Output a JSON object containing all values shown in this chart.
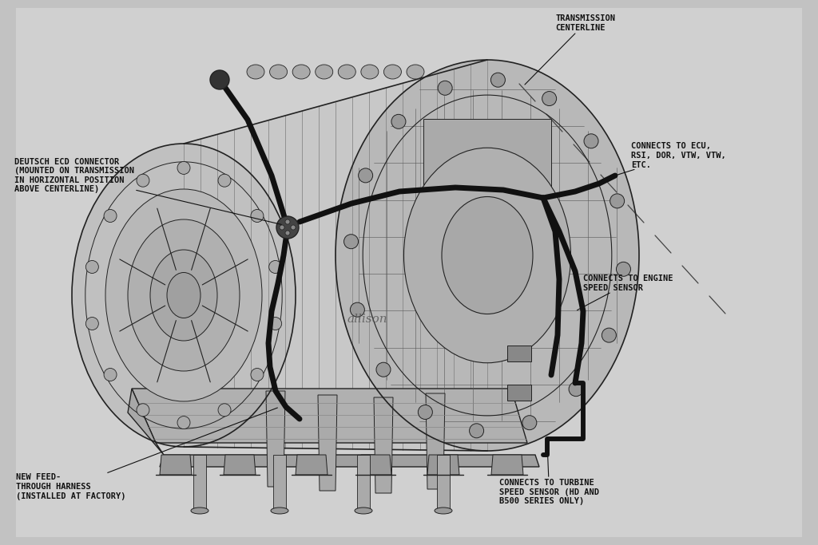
{
  "bg_gradient_top": "#b8b8b8",
  "bg_gradient_mid": "#d0d0d0",
  "bg_gradient_bot": "#c8c8c8",
  "paper_color": "#dcdcdc",
  "body_color": "#222222",
  "wire_color": "#111111",
  "wire_lw": 5.0,
  "body_lw": 1.0,
  "font_family": "monospace",
  "font_size": 7.5,
  "font_color": "#111111",
  "labels": {
    "transmission_centerline": "TRANSMISSION\nCENTERLINE",
    "deutsch_connector": "DEUTSCH ECD CONNECTOR\n(MOUNTED ON TRANSMISSION\nIN HORIZONTAL POSITION\nABOVE CENTERLINE)",
    "connects_ecu": "CONNECTS TO ECU,\nRSI, DOR, VTW, VTW,\nETC.",
    "connects_engine": "CONNECTS TO ENGINE\nSPEED SENSOR",
    "new_feed": "NEW FEED-\nTHROUGH HARNESS\n(INSTALLED AT FACTORY)",
    "connects_turbine": "CONNECTS TO TURBINE\nSPEED SENSOR (HD AND\nB500 SERIES ONLY)"
  }
}
